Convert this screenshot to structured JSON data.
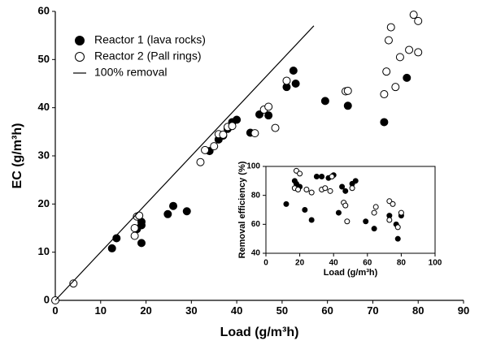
{
  "chart_data": [
    {
      "type": "scatter",
      "xlabel": "Load (g/m³h)",
      "ylabel": "EC (g/m³h)",
      "xlim": [
        0,
        90
      ],
      "xticks": [
        0,
        10,
        20,
        30,
        40,
        50,
        60,
        70,
        80,
        90
      ],
      "ylim": [
        0,
        60
      ],
      "yticks": [
        0,
        10,
        20,
        30,
        40,
        50,
        60
      ],
      "legend": "upper left",
      "box": false,
      "series": [
        {
          "name": "Reactor 1 (lava rocks)",
          "color": "#000000",
          "marker": "filled",
          "x": [
            12.5,
            13.5,
            18,
            19,
            19,
            19,
            24.8,
            26,
            29,
            34,
            36,
            37,
            38,
            39,
            40,
            43,
            45,
            47,
            51,
            52.5,
            53,
            59.5,
            64.5,
            72.5,
            77.5
          ],
          "values": [
            10.8,
            12.9,
            14.8,
            15.6,
            16.3,
            11.9,
            17.9,
            19.6,
            18.5,
            31,
            33.4,
            34.2,
            35.6,
            37,
            37.5,
            34.8,
            38.6,
            38.4,
            44.3,
            47.7,
            45,
            41.4,
            40.4,
            37,
            46.2
          ]
        },
        {
          "name": "Reactor 2 (Pall rings)",
          "color": "#000000",
          "marker": "open",
          "x": [
            0,
            4,
            17.5,
            17.5,
            18,
            18.5,
            32,
            33,
            35,
            36,
            37,
            38,
            39,
            44,
            46,
            47,
            48.5,
            51,
            64,
            64.5,
            72.5,
            73,
            73.5,
            74,
            75,
            76,
            78,
            79,
            80,
            80
          ],
          "values": [
            0,
            3.5,
            13.4,
            15,
            17.4,
            17.6,
            28.7,
            31.2,
            32,
            34.5,
            34.4,
            36,
            36.2,
            34.7,
            39.6,
            40.2,
            35.8,
            45.6,
            43.4,
            43.5,
            42.8,
            47.5,
            54,
            56.7,
            44.3,
            50.5,
            52,
            59.3,
            58,
            51.5
          ]
        },
        {
          "name": "100% removal",
          "color": "#000000",
          "marker": "line",
          "x": [
            0,
            57
          ],
          "values": [
            0,
            57
          ]
        }
      ]
    },
    {
      "type": "scatter",
      "xlabel": "Load (g/m³h)",
      "ylabel": "Removal efficiency (%)",
      "xlim": [
        0,
        100
      ],
      "xticks": [
        0,
        20,
        40,
        60,
        80,
        100
      ],
      "ylim": [
        40,
        100
      ],
      "yticks": [
        40,
        60,
        80,
        100
      ],
      "box": true,
      "series": [
        {
          "color": "#000000",
          "marker": "filled",
          "x": [
            12,
            17,
            18,
            20,
            23,
            27,
            30,
            33,
            37,
            40,
            43,
            45,
            47,
            51,
            53,
            59,
            64,
            73,
            77,
            78,
            80
          ],
          "values": [
            74,
            90,
            88,
            86,
            70,
            63,
            93,
            93,
            92,
            94,
            68,
            86,
            83,
            88,
            90,
            62,
            57,
            66,
            60,
            50,
            66
          ]
        },
        {
          "color": "#000000",
          "marker": "open",
          "x": [
            17,
            18,
            19,
            20,
            24,
            27,
            33,
            35,
            38,
            39,
            46,
            47,
            48,
            51,
            64,
            65,
            73,
            73,
            75,
            78,
            80
          ],
          "values": [
            85,
            97,
            84,
            95,
            84,
            82,
            84,
            85,
            83,
            93,
            75,
            73,
            62,
            85,
            68,
            72,
            76,
            63,
            74,
            58,
            68
          ]
        }
      ]
    }
  ]
}
